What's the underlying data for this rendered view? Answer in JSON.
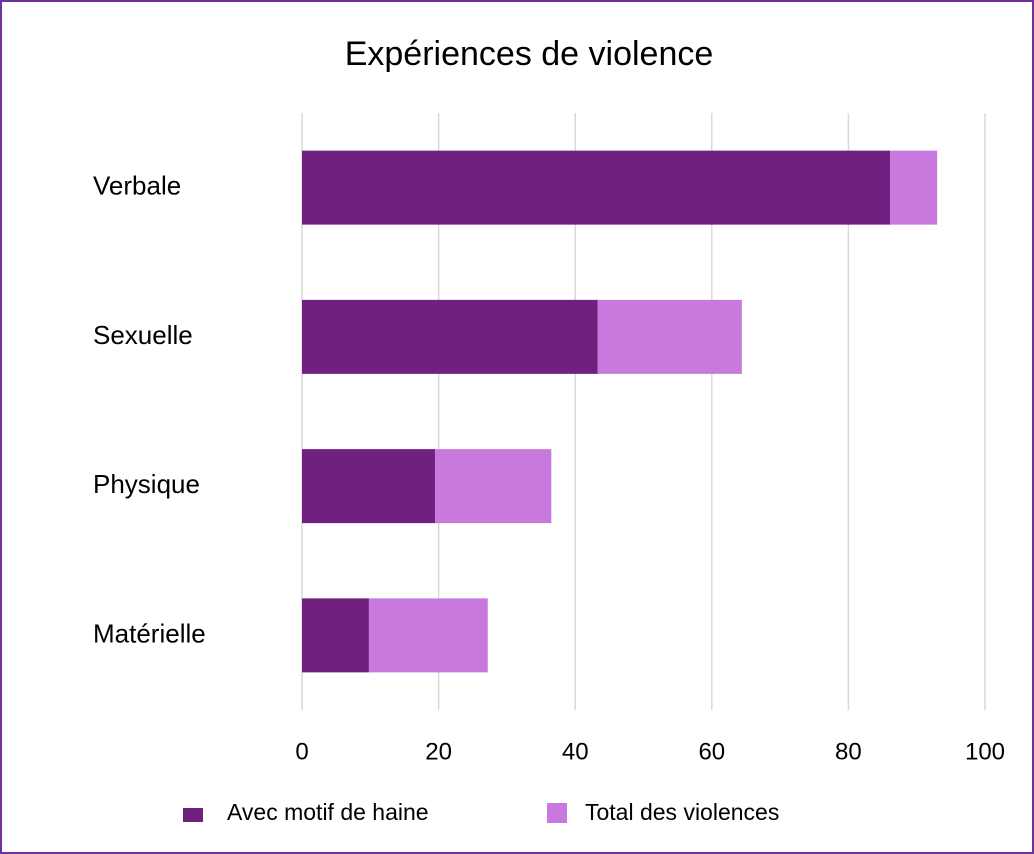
{
  "chart_data": {
    "type": "stacked-barh",
    "title": "Expériences de violence",
    "categories": [
      "Verbale",
      "Sexuelle",
      "Physique",
      "Matérielle"
    ],
    "series": [
      {
        "name": "Avec motif de haine",
        "color": "#70217f",
        "values": [
          86.1,
          43.3,
          19.5,
          9.8
        ]
      },
      {
        "name": "Total des violences",
        "color": "#c879dd",
        "values": [
          6.9,
          21.1,
          17.0,
          17.4
        ]
      }
    ],
    "xlim": [
      0,
      100
    ],
    "xticks": [
      0,
      20,
      40,
      60,
      80,
      100
    ],
    "grid": true,
    "legend": "bottom"
  }
}
